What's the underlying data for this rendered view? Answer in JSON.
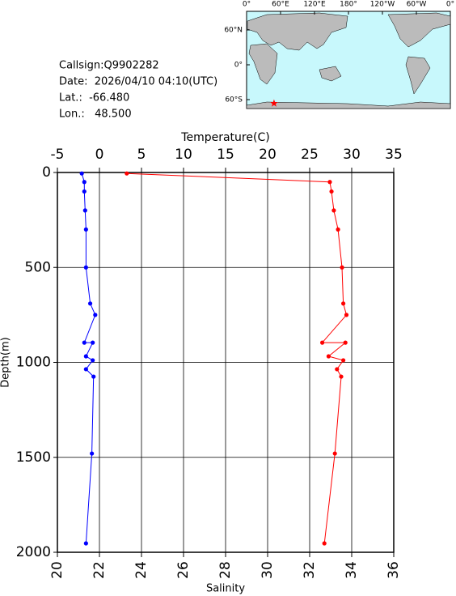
{
  "info": {
    "lines": [
      "Callsign:Q9902282",
      "Date:  2026/04/10 04:10(UTC)",
      "Lat.:  -66.480",
      "Lon.:   48.500"
    ],
    "lat_line": 2,
    "lon_line": 3
  },
  "map": {
    "lon_ticks": [
      {
        "value": 0,
        "label": "0°"
      },
      {
        "value": 60,
        "label": "60°E"
      },
      {
        "value": 120,
        "label": "120°E"
      },
      {
        "value": 180,
        "label": "180°"
      },
      {
        "value": 240,
        "label": "120°W"
      },
      {
        "value": 300,
        "label": "60°W"
      },
      {
        "value": 360,
        "label": "0°"
      }
    ],
    "lat_ticks": [
      {
        "value": 60,
        "label": "60°N"
      },
      {
        "value": 0,
        "label": "0°"
      },
      {
        "value": -60,
        "label": "60°S"
      }
    ],
    "marker_color": "#ff0000"
  },
  "chart_data": {
    "type": "line",
    "x_label": "Temperature(C)",
    "x2_label": "Salinity",
    "y_label": "Depth(m)",
    "xlim": [
      -5,
      35
    ],
    "xticks": [
      -5,
      0,
      5,
      10,
      15,
      20,
      25,
      30,
      35
    ],
    "x2lim": [
      20,
      36
    ],
    "x2ticks": [
      20,
      22,
      24,
      26,
      28,
      30,
      32,
      34,
      36
    ],
    "ylim": [
      0,
      2000
    ],
    "yticks": [
      0,
      500,
      1000,
      1500,
      2000
    ],
    "y_inverted": true,
    "grid": true,
    "y": [
      5,
      50,
      100,
      200,
      300,
      500,
      690,
      750,
      896,
      896,
      968,
      989,
      1036,
      1075,
      1480,
      1953
    ],
    "series": [
      {
        "name": "Temperature",
        "color": "#0000ff",
        "axis": "x",
        "values": [
          -2.1,
          -1.8,
          -1.8,
          -1.7,
          -1.6,
          -1.6,
          -1.1,
          -0.5,
          -1.8,
          -0.8,
          -1.6,
          -0.8,
          -1.6,
          -0.7,
          -0.9,
          -1.6
        ]
      },
      {
        "name": "Salinity",
        "color": "#ff0000",
        "axis": "x2",
        "values": [
          23.3,
          32.96,
          33.04,
          33.15,
          33.35,
          33.54,
          33.6,
          33.75,
          32.6,
          33.7,
          32.9,
          33.6,
          33.3,
          33.5,
          33.2,
          32.7
        ]
      }
    ]
  }
}
